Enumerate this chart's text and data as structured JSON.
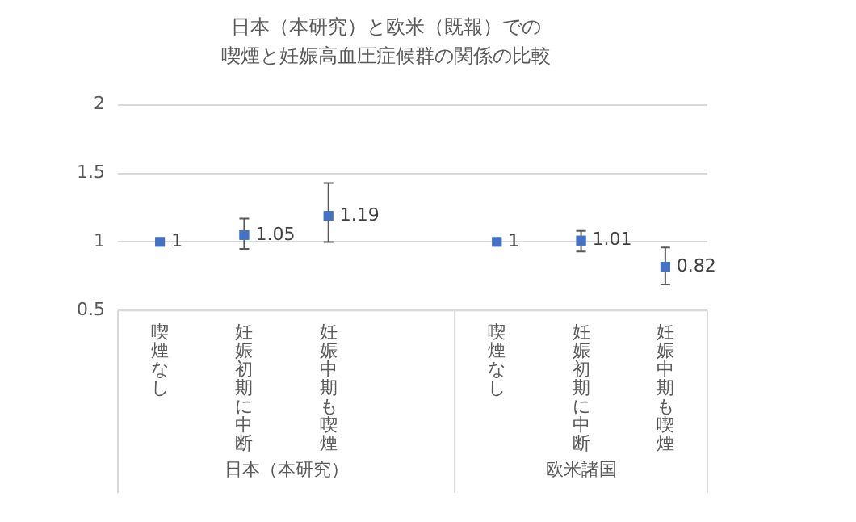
{
  "chart_data": {
    "type": "scatter",
    "title": "日本（本研究）と欧米（既報）での",
    "subtitle": "喫煙と妊娠高血圧症候群の関係の比較",
    "categories": [
      "喫煙なし",
      "妊娠初期に中断",
      "妊娠中期も喫煙",
      null,
      "喫煙なし",
      "妊娠初期に中断",
      "妊娠中期も喫煙"
    ],
    "values": [
      1,
      1.05,
      1.19,
      null,
      1,
      1.01,
      0.82
    ],
    "errors": [
      null,
      [
        0.95,
        1.17
      ],
      [
        1.0,
        1.43
      ],
      null,
      null,
      [
        0.93,
        1.08
      ],
      [
        0.69,
        0.96
      ]
    ],
    "color": "#4472c4",
    "marker": "square",
    "data_labels": true,
    "annotations": [
      "日本（本研究）",
      "欧米諸国"
    ],
    "ylim": [
      0.5,
      2
    ],
    "yticks": [
      0.5,
      1,
      1.5,
      2
    ],
    "grid": "y"
  }
}
